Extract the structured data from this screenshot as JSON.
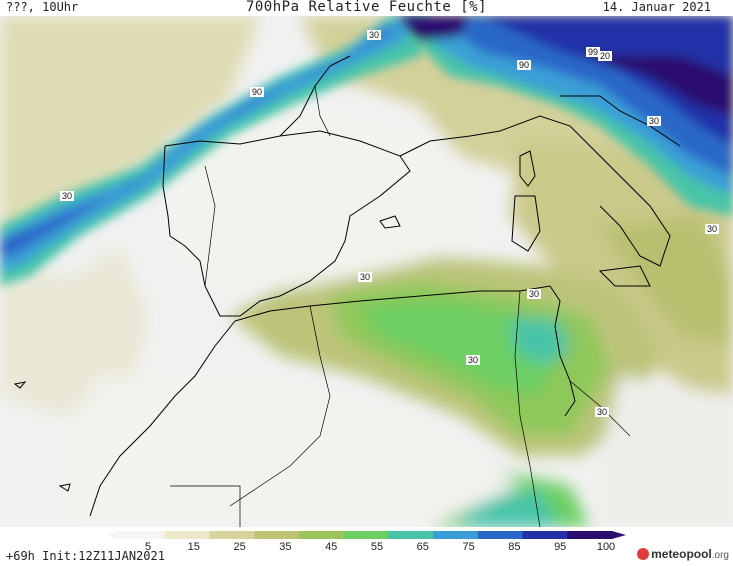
{
  "header": {
    "left": "???, 10Uhr",
    "title": "700hPa Relative Feuchte [%]",
    "date": "14. Januar 2021"
  },
  "footer": {
    "run": "+69h  Init:12Z11JAN2021",
    "logo_main": "meteopool",
    "logo_tld": ".org"
  },
  "legend": {
    "ticks": [
      "5",
      "15",
      "25",
      "35",
      "45",
      "55",
      "65",
      "75",
      "85",
      "95",
      "100"
    ],
    "colors": [
      "#f4f4f4",
      "#ebe9c8",
      "#d6d39c",
      "#bfc474",
      "#9cc45a",
      "#6ccf64",
      "#47c4a8",
      "#3a9ed6",
      "#2a68c8",
      "#2330a8",
      "#2a0f6e"
    ]
  },
  "contour_labels": [
    "30",
    "90",
    "30",
    "90",
    "99",
    "20",
    "30",
    "30",
    "30",
    "30",
    "30",
    "30"
  ]
}
